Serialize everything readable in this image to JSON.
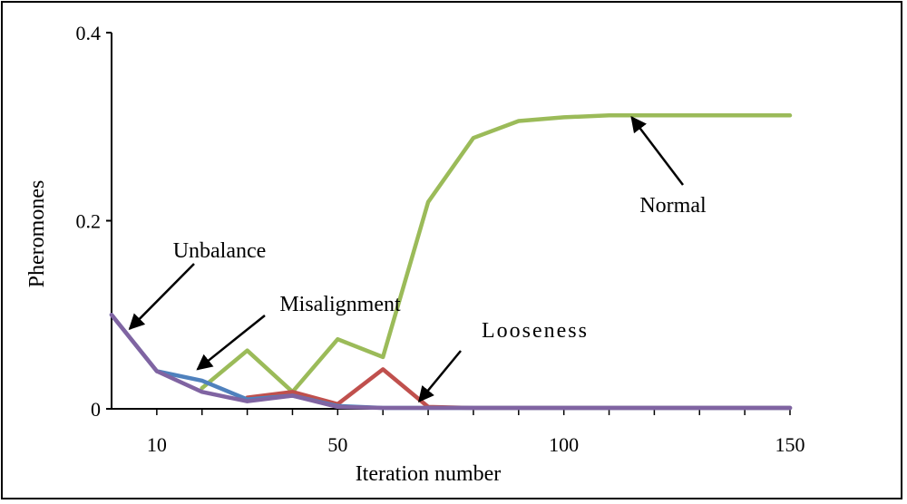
{
  "chart_data": {
    "type": "line",
    "xlabel": "Iteration number",
    "ylabel": "Pheromones",
    "xlim": [
      0,
      150
    ],
    "ylim": [
      0,
      0.4
    ],
    "x_ticks": [
      10,
      50,
      100,
      150
    ],
    "y_ticks": [
      0,
      0.2,
      0.4
    ],
    "y_tick_labels": [
      "0",
      "0.2",
      "0.4"
    ],
    "grid": false,
    "legend": "none",
    "series": [
      {
        "name": "Normal",
        "color": "#9BBB59",
        "x": [
          20,
          30,
          40,
          50,
          60,
          70,
          80,
          90,
          100,
          110,
          120,
          130,
          140,
          150
        ],
        "y": [
          0.022,
          0.062,
          0.018,
          0.074,
          0.055,
          0.22,
          0.288,
          0.306,
          0.31,
          0.312,
          0.312,
          0.312,
          0.312,
          0.312
        ]
      },
      {
        "name": "Looseness",
        "color": "#C0504D",
        "x": [
          30,
          40,
          50,
          60,
          70,
          80,
          90,
          100,
          110,
          120,
          130,
          140,
          150
        ],
        "y": [
          0.012,
          0.018,
          0.005,
          0.042,
          0.002,
          0.001,
          0.001,
          0.001,
          0.001,
          0.001,
          0.001,
          0.001,
          0.001
        ]
      },
      {
        "name": "Unbalance",
        "color": "#4F81BD",
        "x": [
          0,
          10,
          20,
          30,
          40,
          50,
          60,
          70,
          80,
          90,
          100,
          110,
          120,
          130,
          140,
          150
        ],
        "y": [
          0.1,
          0.04,
          0.03,
          0.01,
          0.014,
          0.003,
          0.001,
          0.001,
          0.001,
          0.001,
          0.001,
          0.001,
          0.001,
          0.001,
          0.001,
          0.001
        ]
      },
      {
        "name": "Misalignment",
        "color": "#8064A2",
        "x": [
          0,
          10,
          20,
          30,
          40,
          50,
          60,
          70,
          80,
          90,
          100,
          110,
          120,
          130,
          140,
          150
        ],
        "y": [
          0.1,
          0.04,
          0.018,
          0.008,
          0.014,
          0.002,
          0.001,
          0.001,
          0.001,
          0.001,
          0.001,
          0.001,
          0.001,
          0.001,
          0.001,
          0.001
        ]
      }
    ],
    "annotations": [
      {
        "label": "Normal",
        "target_x": 115,
        "target_y": 0.31
      },
      {
        "label": "Unbalance",
        "target_x": 4,
        "target_y": 0.085
      },
      {
        "label": "Misalignment",
        "target_x": 19,
        "target_y": 0.042
      },
      {
        "label": "Looseness",
        "target_x": 68,
        "target_y": 0.008
      }
    ]
  }
}
